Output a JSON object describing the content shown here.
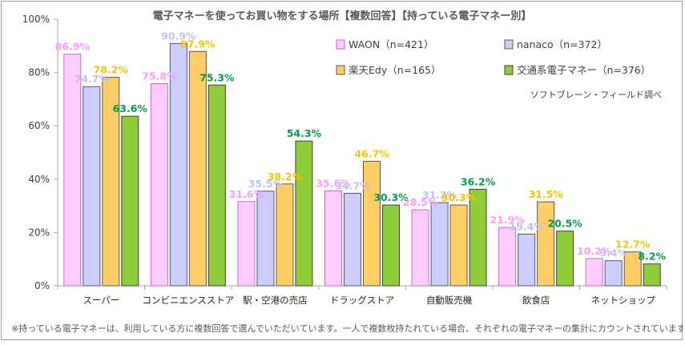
{
  "chart_data": {
    "type": "bar",
    "title": "電子マネーを使ってお買い物をする場所【複数回答】【持っている電子マネー別】",
    "categories": [
      "スーパー",
      "コンビニエンスストア",
      "駅・空港の売店",
      "ドラッグストア",
      "自動販売機",
      "飲食店",
      "ネットショップ"
    ],
    "series": [
      {
        "name": "WAON（n=421）",
        "values": [
          86.9,
          75.8,
          31.6,
          35.6,
          28.5,
          21.9,
          10.2
        ],
        "labels": [
          "86.9%",
          "75.8%",
          "31.6%",
          "35.6%",
          "28.5%",
          "21.9%",
          "10.2%"
        ],
        "fill": "#ffccff",
        "stroke": "#cc66cc",
        "label_color": "#ff99ff"
      },
      {
        "name": "nanaco（n=372）",
        "values": [
          74.7,
          90.9,
          35.5,
          34.7,
          31.2,
          19.4,
          9.4
        ],
        "labels": [
          "74.7%",
          "90.9%",
          "35.5%",
          "34.7%",
          "31.2%",
          "19.4%",
          "9.4%"
        ],
        "fill": "#ccccff",
        "stroke": "#595959",
        "label_color": "#c0c0ee"
      },
      {
        "name": "楽天Edy（n=165）",
        "values": [
          78.2,
          87.9,
          38.2,
          46.7,
          30.3,
          31.5,
          12.7
        ],
        "labels": [
          "78.2%",
          "87.9%",
          "38.2%",
          "46.7%",
          "30.3%",
          "31.5%",
          "12.7%"
        ],
        "fill": "#ffcc66",
        "stroke": "#595959",
        "label_color": "#f5c400"
      },
      {
        "name": "交通系電子マネー（n=376）",
        "values": [
          63.6,
          75.3,
          54.3,
          30.3,
          36.2,
          20.5,
          8.2
        ],
        "labels": [
          "63.6%",
          "75.3%",
          "54.3%",
          "30.3%",
          "36.2%",
          "20.5%",
          "8.2%"
        ],
        "fill": "#8fcc3a",
        "stroke": "#404040",
        "label_color": "#00a04a"
      }
    ],
    "ylim": [
      0,
      100
    ],
    "yticks": [
      "0%",
      "20%",
      "40%",
      "60%",
      "80%",
      "100%"
    ],
    "grid": false,
    "legend_position": "top-right",
    "source": "ソフトブレーン・フィールド調べ",
    "footnote": "※持っている電子マネーは、利用している方に複数回答で選んでいただいています。一人で複数枚持たれている場合、それぞれの電子マネーの集計にカウントされています"
  }
}
